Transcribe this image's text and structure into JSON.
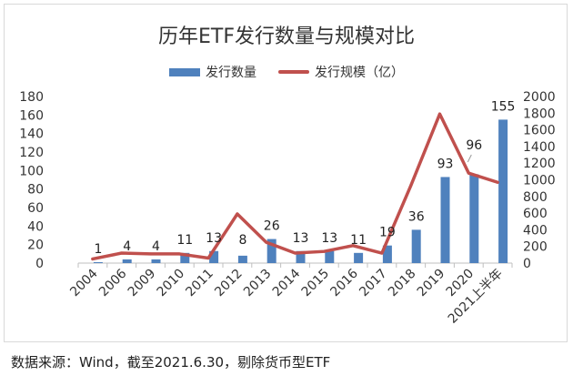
{
  "source_note": "数据来源：Wind，截至2021.6.30，剔除货币型ETF",
  "colors": {
    "bar": "#4f81bd",
    "line": "#c0504d",
    "axis": "#bfbfbf",
    "text": "#333333"
  },
  "chart_data": {
    "type": "bar",
    "title": "历年ETF发行数量与规模对比",
    "categories": [
      "2004",
      "2006",
      "2009",
      "2010",
      "2011",
      "2012",
      "2013",
      "2014",
      "2015",
      "2016",
      "2017",
      "2018",
      "2019",
      "2020",
      "2021上半年"
    ],
    "series": [
      {
        "name": "发行数量",
        "type": "bar",
        "axis": "left",
        "values": [
          1,
          4,
          4,
          11,
          13,
          8,
          26,
          13,
          13,
          11,
          19,
          36,
          93,
          96,
          155
        ]
      },
      {
        "name": "发行规模（亿）",
        "type": "line",
        "axis": "right",
        "values": [
          50,
          120,
          110,
          110,
          60,
          590,
          250,
          120,
          140,
          210,
          120,
          930,
          1790,
          1080,
          970
        ]
      }
    ],
    "data_labels": [
      "1",
      "4",
      "4",
      "11",
      "13",
      "8",
      "26",
      "13",
      "13",
      "11",
      "19",
      "36",
      "93",
      "96",
      "155"
    ],
    "y_left": {
      "ylim": [
        0,
        180
      ],
      "ticks": [
        "0",
        "20",
        "40",
        "60",
        "80",
        "100",
        "120",
        "140",
        "160",
        "180"
      ]
    },
    "y_right": {
      "ylim": [
        0,
        2000
      ],
      "ticks": [
        "0",
        "200",
        "400",
        "600",
        "800",
        "1000",
        "1200",
        "1400",
        "1600",
        "1800",
        "2000"
      ]
    },
    "legend_position": "top-center",
    "grid": false
  }
}
